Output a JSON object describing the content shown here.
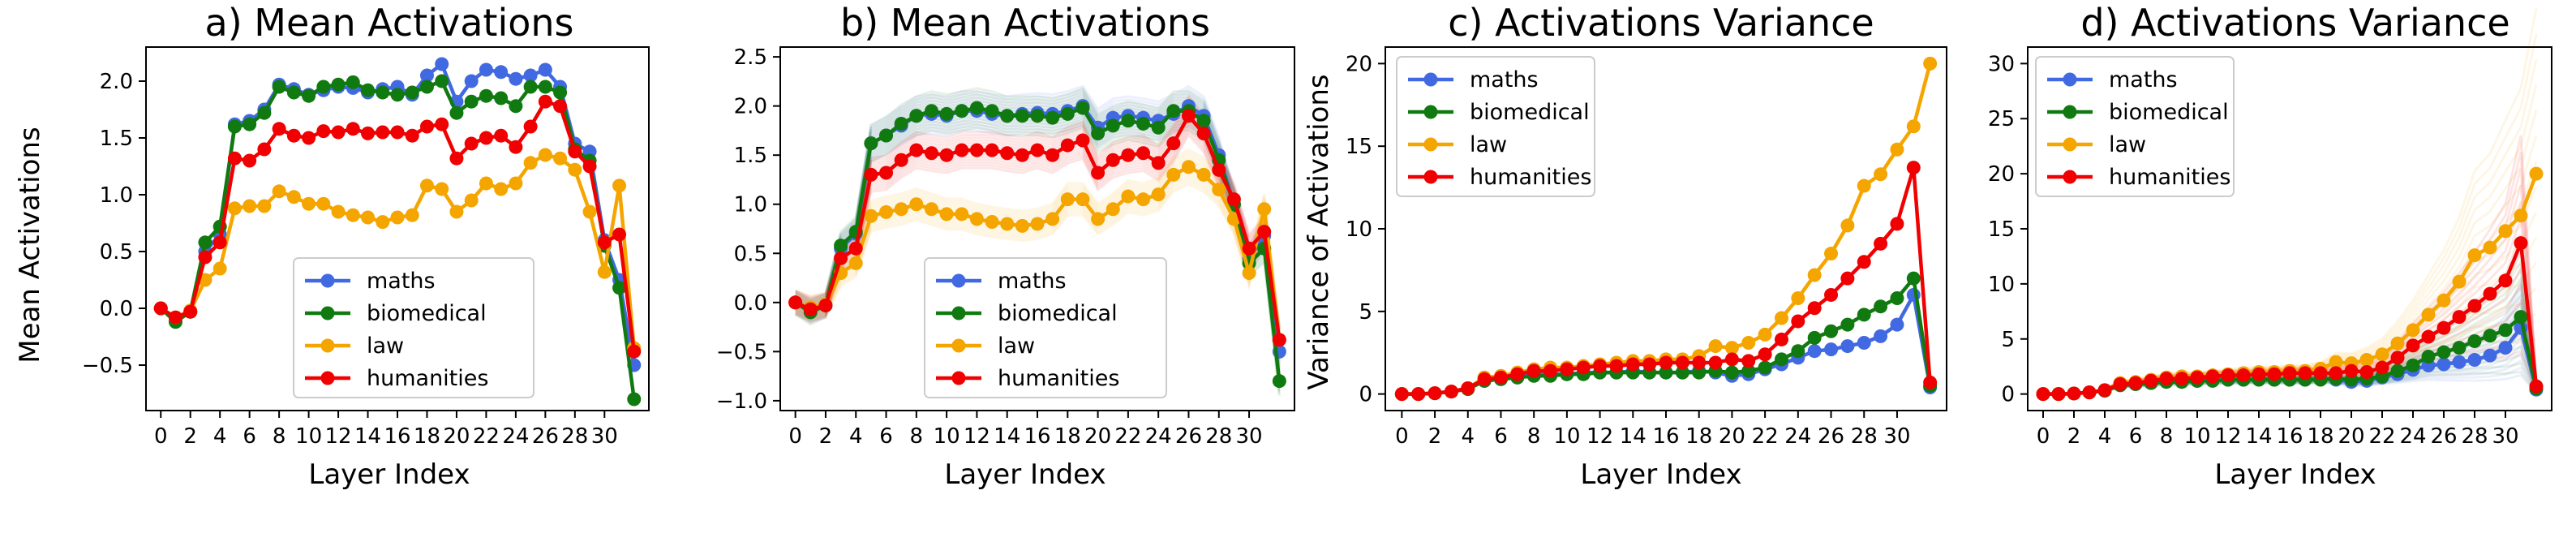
{
  "figure": {
    "panels": [
      {
        "title": "a) Mean Activations",
        "ylabel": "Mean Activations",
        "xlabel": "Layer Index"
      },
      {
        "title": "b) Mean Activations",
        "ylabel": "",
        "xlabel": "Layer Index"
      },
      {
        "title": "c) Activations Variance",
        "ylabel": "Variance of Activations",
        "xlabel": "Layer Index"
      },
      {
        "title": "d) Activations Variance",
        "ylabel": "",
        "xlabel": "Layer Index"
      }
    ]
  },
  "chart_data": [
    {
      "type": "line",
      "title": "a) Mean Activations",
      "xlabel": "Layer Index",
      "ylabel": "Mean Activations",
      "x": [
        0,
        1,
        2,
        3,
        4,
        5,
        6,
        7,
        8,
        9,
        10,
        11,
        12,
        13,
        14,
        15,
        16,
        17,
        18,
        19,
        20,
        21,
        22,
        23,
        24,
        25,
        26,
        27,
        28,
        29,
        30,
        31,
        32
      ],
      "xticks": [
        "0",
        "2",
        "4",
        "6",
        "8",
        "10",
        "12",
        "14",
        "16",
        "18",
        "20",
        "22",
        "24",
        "26",
        "28",
        "30"
      ],
      "yticks": [
        "−0.5",
        "0.0",
        "0.5",
        "1.0",
        "1.5",
        "2.0"
      ],
      "ylim": [
        -0.9,
        2.3
      ],
      "legend": "lower-center",
      "grid": false,
      "series": [
        {
          "name": "maths",
          "color": "#4169e1",
          "values": [
            0.0,
            -0.1,
            -0.03,
            0.5,
            0.65,
            1.62,
            1.65,
            1.75,
            1.97,
            1.93,
            1.88,
            1.92,
            1.95,
            1.94,
            1.9,
            1.93,
            1.95,
            1.88,
            2.05,
            2.15,
            1.82,
            2.0,
            2.1,
            2.08,
            2.02,
            2.05,
            2.1,
            1.95,
            1.45,
            1.38,
            0.6,
            0.25,
            -0.5
          ]
        },
        {
          "name": "biomedical",
          "color": "#107a10",
          "values": [
            0.0,
            -0.12,
            -0.03,
            0.58,
            0.72,
            1.6,
            1.62,
            1.72,
            1.95,
            1.9,
            1.87,
            1.95,
            1.97,
            1.99,
            1.92,
            1.9,
            1.88,
            1.9,
            1.95,
            2.0,
            1.72,
            1.82,
            1.87,
            1.85,
            1.78,
            1.95,
            1.95,
            1.9,
            1.4,
            1.3,
            0.55,
            0.18,
            -0.8
          ]
        },
        {
          "name": "law",
          "color": "#f5a500",
          "values": [
            0.0,
            -0.08,
            -0.02,
            0.25,
            0.35,
            0.88,
            0.9,
            0.9,
            1.03,
            0.98,
            0.92,
            0.92,
            0.85,
            0.82,
            0.8,
            0.76,
            0.8,
            0.82,
            1.08,
            1.05,
            0.85,
            0.95,
            1.1,
            1.05,
            1.1,
            1.28,
            1.35,
            1.32,
            1.22,
            0.85,
            0.32,
            1.08,
            -0.35
          ]
        },
        {
          "name": "humanities",
          "color": "#f00000",
          "values": [
            0.0,
            -0.08,
            -0.03,
            0.45,
            0.58,
            1.32,
            1.3,
            1.4,
            1.58,
            1.52,
            1.5,
            1.56,
            1.55,
            1.58,
            1.54,
            1.55,
            1.55,
            1.52,
            1.6,
            1.62,
            1.32,
            1.45,
            1.5,
            1.52,
            1.42,
            1.6,
            1.82,
            1.78,
            1.38,
            1.25,
            0.58,
            0.65,
            -0.38
          ]
        }
      ]
    },
    {
      "type": "line",
      "title": "b) Mean Activations",
      "xlabel": "Layer Index",
      "ylabel": "",
      "x": [
        0,
        1,
        2,
        3,
        4,
        5,
        6,
        7,
        8,
        9,
        10,
        11,
        12,
        13,
        14,
        15,
        16,
        17,
        18,
        19,
        20,
        21,
        22,
        23,
        24,
        25,
        26,
        27,
        28,
        29,
        30,
        31,
        32
      ],
      "xticks": [
        "0",
        "2",
        "4",
        "6",
        "8",
        "10",
        "12",
        "14",
        "16",
        "18",
        "20",
        "22",
        "24",
        "26",
        "28",
        "30"
      ],
      "yticks": [
        "−1.0",
        "−0.5",
        "0.0",
        "0.5",
        "1.0",
        "1.5",
        "2.0",
        "2.5"
      ],
      "ylim": [
        -1.1,
        2.6
      ],
      "legend": "lower-center",
      "grid": false,
      "series": [
        {
          "name": "maths",
          "color": "#4169e1",
          "values": [
            0.0,
            -0.08,
            -0.03,
            0.55,
            0.7,
            1.62,
            1.7,
            1.8,
            1.9,
            1.92,
            1.9,
            1.95,
            1.95,
            1.92,
            1.9,
            1.92,
            1.93,
            1.92,
            1.95,
            2.0,
            1.78,
            1.88,
            1.9,
            1.88,
            1.85,
            1.92,
            2.0,
            1.9,
            1.5,
            1.0,
            0.45,
            0.68,
            -0.5
          ]
        },
        {
          "name": "biomedical",
          "color": "#107a10",
          "values": [
            0.0,
            -0.1,
            -0.03,
            0.58,
            0.72,
            1.62,
            1.7,
            1.82,
            1.9,
            1.95,
            1.92,
            1.95,
            1.98,
            1.95,
            1.9,
            1.9,
            1.9,
            1.88,
            1.92,
            1.98,
            1.72,
            1.8,
            1.85,
            1.82,
            1.78,
            1.95,
            1.95,
            1.85,
            1.45,
            1.0,
            0.4,
            0.55,
            -0.8
          ]
        },
        {
          "name": "law",
          "color": "#f5a500",
          "values": [
            0.0,
            -0.05,
            -0.02,
            0.3,
            0.4,
            0.88,
            0.92,
            0.95,
            1.0,
            0.95,
            0.9,
            0.9,
            0.85,
            0.82,
            0.8,
            0.78,
            0.8,
            0.85,
            1.05,
            1.05,
            0.85,
            0.95,
            1.08,
            1.05,
            1.1,
            1.3,
            1.38,
            1.3,
            1.15,
            0.85,
            0.3,
            0.95,
            -0.38
          ]
        },
        {
          "name": "humanities",
          "color": "#f00000",
          "values": [
            0.0,
            -0.07,
            -0.03,
            0.45,
            0.55,
            1.3,
            1.32,
            1.45,
            1.55,
            1.52,
            1.5,
            1.55,
            1.55,
            1.55,
            1.52,
            1.5,
            1.55,
            1.5,
            1.6,
            1.65,
            1.32,
            1.45,
            1.5,
            1.52,
            1.42,
            1.62,
            1.9,
            1.72,
            1.35,
            1.05,
            0.55,
            0.72,
            -0.38
          ]
        }
      ]
    },
    {
      "type": "line",
      "title": "c) Activations Variance",
      "xlabel": "Layer Index",
      "ylabel": "Variance of Activations",
      "x": [
        0,
        1,
        2,
        3,
        4,
        5,
        6,
        7,
        8,
        9,
        10,
        11,
        12,
        13,
        14,
        15,
        16,
        17,
        18,
        19,
        20,
        21,
        22,
        23,
        24,
        25,
        26,
        27,
        28,
        29,
        30,
        31,
        32
      ],
      "xticks": [
        "0",
        "2",
        "4",
        "6",
        "8",
        "10",
        "12",
        "14",
        "16",
        "18",
        "20",
        "22",
        "24",
        "26",
        "28",
        "30"
      ],
      "yticks": [
        "0",
        "5",
        "10",
        "15",
        "20"
      ],
      "ylim": [
        -1,
        21
      ],
      "legend": "upper-left",
      "grid": false,
      "series": [
        {
          "name": "maths",
          "color": "#4169e1",
          "values": [
            0.0,
            0.0,
            0.05,
            0.15,
            0.3,
            0.8,
            0.9,
            1.0,
            1.2,
            1.2,
            1.2,
            1.3,
            1.3,
            1.3,
            1.4,
            1.3,
            1.3,
            1.3,
            1.4,
            1.3,
            1.1,
            1.2,
            1.5,
            1.8,
            2.2,
            2.6,
            2.7,
            2.9,
            3.1,
            3.5,
            4.2,
            6.0,
            0.4
          ]
        },
        {
          "name": "biomedical",
          "color": "#107a10",
          "values": [
            0.0,
            0.0,
            0.05,
            0.15,
            0.3,
            0.8,
            0.9,
            1.0,
            1.1,
            1.1,
            1.2,
            1.2,
            1.3,
            1.3,
            1.3,
            1.3,
            1.3,
            1.3,
            1.3,
            1.4,
            1.3,
            1.4,
            1.6,
            2.1,
            2.6,
            3.4,
            3.8,
            4.2,
            4.8,
            5.3,
            5.8,
            7.0,
            0.5
          ]
        },
        {
          "name": "law",
          "color": "#f5a500",
          "values": [
            0.0,
            0.0,
            0.05,
            0.15,
            0.35,
            1.0,
            1.1,
            1.3,
            1.5,
            1.6,
            1.6,
            1.7,
            1.8,
            1.9,
            2.0,
            2.0,
            2.1,
            2.1,
            2.3,
            2.9,
            2.8,
            3.1,
            3.6,
            4.6,
            5.8,
            7.2,
            8.5,
            10.2,
            12.6,
            13.3,
            14.8,
            16.2,
            20.0
          ]
        },
        {
          "name": "humanities",
          "color": "#f00000",
          "values": [
            0.0,
            0.0,
            0.05,
            0.15,
            0.35,
            0.9,
            1.0,
            1.2,
            1.4,
            1.4,
            1.5,
            1.6,
            1.7,
            1.7,
            1.8,
            1.8,
            1.9,
            1.9,
            1.9,
            1.9,
            2.1,
            2.0,
            2.4,
            3.3,
            4.4,
            5.2,
            6.0,
            7.0,
            8.0,
            9.1,
            10.3,
            13.7,
            0.7
          ]
        }
      ]
    },
    {
      "type": "line",
      "title": "d) Activations Variance",
      "xlabel": "Layer Index",
      "ylabel": "",
      "x": [
        0,
        1,
        2,
        3,
        4,
        5,
        6,
        7,
        8,
        9,
        10,
        11,
        12,
        13,
        14,
        15,
        16,
        17,
        18,
        19,
        20,
        21,
        22,
        23,
        24,
        25,
        26,
        27,
        28,
        29,
        30,
        31,
        32
      ],
      "xticks": [
        "0",
        "2",
        "4",
        "6",
        "8",
        "10",
        "12",
        "14",
        "16",
        "18",
        "20",
        "22",
        "24",
        "26",
        "28",
        "30"
      ],
      "yticks": [
        "0",
        "5",
        "10",
        "15",
        "20",
        "25",
        "30"
      ],
      "ylim": [
        -1.5,
        31.5
      ],
      "legend": "upper-left",
      "grid": false,
      "series": [
        {
          "name": "maths",
          "color": "#4169e1",
          "values": [
            0.0,
            0.0,
            0.05,
            0.15,
            0.3,
            0.8,
            0.9,
            1.0,
            1.2,
            1.2,
            1.2,
            1.3,
            1.3,
            1.3,
            1.4,
            1.3,
            1.3,
            1.3,
            1.4,
            1.3,
            1.1,
            1.2,
            1.5,
            1.8,
            2.2,
            2.6,
            2.7,
            2.9,
            3.1,
            3.5,
            4.2,
            6.0,
            0.4
          ]
        },
        {
          "name": "biomedical",
          "color": "#107a10",
          "values": [
            0.0,
            0.0,
            0.05,
            0.15,
            0.3,
            0.8,
            0.9,
            1.0,
            1.1,
            1.1,
            1.2,
            1.2,
            1.3,
            1.3,
            1.3,
            1.3,
            1.3,
            1.3,
            1.3,
            1.4,
            1.3,
            1.4,
            1.6,
            2.1,
            2.6,
            3.4,
            3.8,
            4.2,
            4.8,
            5.3,
            5.8,
            7.0,
            0.5
          ]
        },
        {
          "name": "law",
          "color": "#f5a500",
          "values": [
            0.0,
            0.0,
            0.05,
            0.15,
            0.35,
            1.0,
            1.1,
            1.3,
            1.5,
            1.6,
            1.6,
            1.7,
            1.8,
            1.9,
            2.0,
            2.0,
            2.1,
            2.1,
            2.3,
            2.9,
            2.8,
            3.1,
            3.6,
            4.6,
            5.8,
            7.2,
            8.5,
            10.2,
            12.6,
            13.3,
            14.8,
            16.2,
            20.0
          ]
        },
        {
          "name": "humanities",
          "color": "#f00000",
          "values": [
            0.0,
            0.0,
            0.05,
            0.15,
            0.35,
            0.9,
            1.0,
            1.2,
            1.4,
            1.4,
            1.5,
            1.6,
            1.7,
            1.7,
            1.8,
            1.8,
            1.9,
            1.9,
            1.9,
            1.9,
            2.1,
            2.0,
            2.4,
            3.3,
            4.4,
            5.2,
            6.0,
            7.0,
            8.0,
            9.1,
            10.3,
            13.7,
            0.7
          ]
        }
      ]
    }
  ]
}
